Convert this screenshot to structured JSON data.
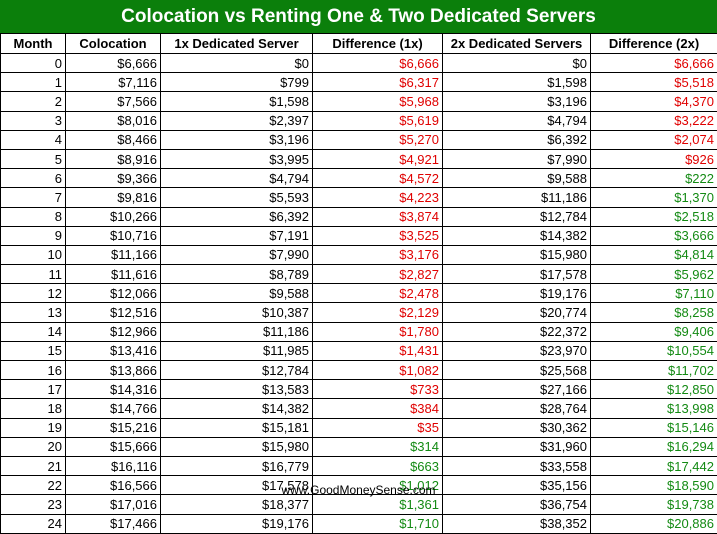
{
  "title": "Colocation vs Renting One & Two Dedicated Servers",
  "footer": "www.GoodMoneySense.com",
  "colors": {
    "title_bg": "#0b7f0b",
    "negative": "#e00000",
    "positive": "#138a13"
  },
  "chart_data": {
    "type": "table",
    "title": "Colocation vs Renting One & Two Dedicated Servers",
    "columns": [
      "Month",
      "Colocation",
      "1x Dedicated Server",
      "Difference (1x)",
      "2x Dedicated Servers",
      "Difference (2x)"
    ],
    "rows": [
      [
        "0",
        "$6,666",
        "$0",
        "$6,666",
        "$0",
        "$6,666"
      ],
      [
        "1",
        "$7,116",
        "$799",
        "$6,317",
        "$1,598",
        "$5,518"
      ],
      [
        "2",
        "$7,566",
        "$1,598",
        "$5,968",
        "$3,196",
        "$4,370"
      ],
      [
        "3",
        "$8,016",
        "$2,397",
        "$5,619",
        "$4,794",
        "$3,222"
      ],
      [
        "4",
        "$8,466",
        "$3,196",
        "$5,270",
        "$6,392",
        "$2,074"
      ],
      [
        "5",
        "$8,916",
        "$3,995",
        "$4,921",
        "$7,990",
        "$926"
      ],
      [
        "6",
        "$9,366",
        "$4,794",
        "$4,572",
        "$9,588",
        "$222"
      ],
      [
        "7",
        "$9,816",
        "$5,593",
        "$4,223",
        "$11,186",
        "$1,370"
      ],
      [
        "8",
        "$10,266",
        "$6,392",
        "$3,874",
        "$12,784",
        "$2,518"
      ],
      [
        "9",
        "$10,716",
        "$7,191",
        "$3,525",
        "$14,382",
        "$3,666"
      ],
      [
        "10",
        "$11,166",
        "$7,990",
        "$3,176",
        "$15,980",
        "$4,814"
      ],
      [
        "11",
        "$11,616",
        "$8,789",
        "$2,827",
        "$17,578",
        "$5,962"
      ],
      [
        "12",
        "$12,066",
        "$9,588",
        "$2,478",
        "$19,176",
        "$7,110"
      ],
      [
        "13",
        "$12,516",
        "$10,387",
        "$2,129",
        "$20,774",
        "$8,258"
      ],
      [
        "14",
        "$12,966",
        "$11,186",
        "$1,780",
        "$22,372",
        "$9,406"
      ],
      [
        "15",
        "$13,416",
        "$11,985",
        "$1,431",
        "$23,970",
        "$10,554"
      ],
      [
        "16",
        "$13,866",
        "$12,784",
        "$1,082",
        "$25,568",
        "$11,702"
      ],
      [
        "17",
        "$14,316",
        "$13,583",
        "$733",
        "$27,166",
        "$12,850"
      ],
      [
        "18",
        "$14,766",
        "$14,382",
        "$384",
        "$28,764",
        "$13,998"
      ],
      [
        "19",
        "$15,216",
        "$15,181",
        "$35",
        "$30,362",
        "$15,146"
      ],
      [
        "20",
        "$15,666",
        "$15,980",
        "$314",
        "$31,960",
        "$16,294"
      ],
      [
        "21",
        "$16,116",
        "$16,779",
        "$663",
        "$33,558",
        "$17,442"
      ],
      [
        "22",
        "$16,566",
        "$17,578",
        "$1,012",
        "$35,156",
        "$18,590"
      ],
      [
        "23",
        "$17,016",
        "$18,377",
        "$1,361",
        "$36,754",
        "$19,738"
      ],
      [
        "24",
        "$17,466",
        "$19,176",
        "$1,710",
        "$38,352",
        "$20,886"
      ]
    ],
    "diff_1x_color": [
      "neg",
      "neg",
      "neg",
      "neg",
      "neg",
      "neg",
      "neg",
      "neg",
      "neg",
      "neg",
      "neg",
      "neg",
      "neg",
      "neg",
      "neg",
      "neg",
      "neg",
      "neg",
      "neg",
      "neg",
      "pos",
      "pos",
      "pos",
      "pos",
      "pos"
    ],
    "diff_2x_color": [
      "neg",
      "neg",
      "neg",
      "neg",
      "neg",
      "neg",
      "pos",
      "pos",
      "pos",
      "pos",
      "pos",
      "pos",
      "pos",
      "pos",
      "pos",
      "pos",
      "pos",
      "pos",
      "pos",
      "pos",
      "pos",
      "pos",
      "pos",
      "pos",
      "pos"
    ]
  }
}
